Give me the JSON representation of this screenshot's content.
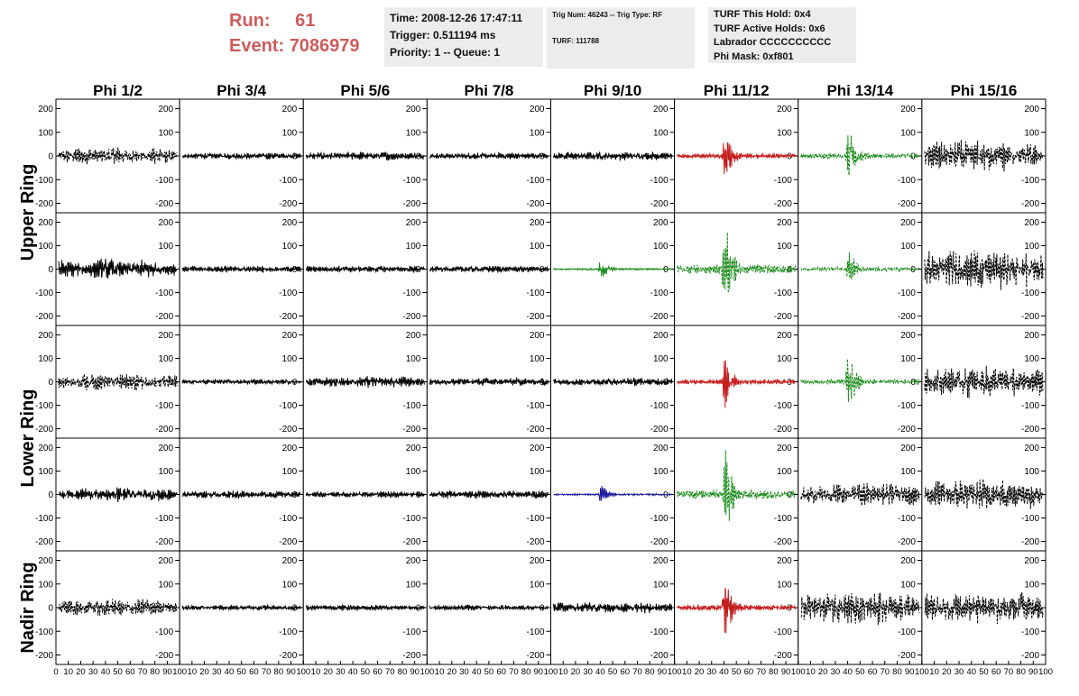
{
  "header": {
    "run_label": "Run:",
    "run_value": "61",
    "event_label": "Event:",
    "event_value": "7086979"
  },
  "info_box_1": {
    "time": "Time: 2008-12-26 17:47:11",
    "trigger": "Trigger: 0.511194 ms",
    "priority": "Priority: 1 -- Queue: 1"
  },
  "info_box_2": {
    "trig": "Trig Num: 46243 -- Trig Type: RF",
    "turf": "TURF: 111788"
  },
  "info_box_3": {
    "hold": "TURF This Hold: 0x4",
    "active": "TURF Active Holds: 0x6",
    "labrador": "Labrador CCCCCCCCCC",
    "phimask": "Phi Mask: 0xf801"
  },
  "chart_data": {
    "type": "line",
    "columns": [
      "Phi 1/2",
      "Phi 3/4",
      "Phi 5/6",
      "Phi 7/8",
      "Phi 9/10",
      "Phi 11/12",
      "Phi 13/14",
      "Phi 15/16"
    ],
    "rows": [
      "Upper Ring",
      "Lower Ring",
      "Nadir Ring"
    ],
    "x_range": [
      0,
      100
    ],
    "x_ticks": [
      "0",
      "10",
      "20",
      "30",
      "40",
      "50",
      "60",
      "70",
      "80",
      "90",
      "100"
    ],
    "y_range": [
      -240,
      240
    ],
    "y_ticks": [
      "200",
      "100",
      "0",
      "-100",
      "-200"
    ],
    "colors": {
      "normal": "#000000",
      "triggered_red": "#c41e1e",
      "triggered_green": "#1a8a1a",
      "triggered_blue": "#1c1c9c"
    },
    "panels": [
      [
        "black-dash",
        "black",
        "black",
        "black",
        "black",
        "red",
        "green-dash",
        "black-dash"
      ],
      [
        "black",
        "black",
        "black",
        "black",
        "green",
        "green-dash",
        "green-dash",
        "black-dash"
      ],
      [
        "black-dash",
        "black",
        "black",
        "black",
        "black",
        "red",
        "green-dash",
        "black-dash"
      ],
      [
        "black",
        "black",
        "black",
        "black",
        "blue",
        "green-dash",
        "black-dash",
        "black-dash"
      ],
      [
        "black-dash",
        "black",
        "black",
        "black",
        "black",
        "red",
        "black-dash",
        "black-dash"
      ]
    ],
    "approx_amplitude": [
      [
        30,
        12,
        15,
        12,
        15,
        100,
        120,
        55
      ],
      [
        35,
        12,
        12,
        12,
        40,
        200,
        80,
        70
      ],
      [
        30,
        10,
        20,
        14,
        14,
        110,
        120,
        55
      ],
      [
        25,
        14,
        12,
        14,
        40,
        200,
        40,
        55
      ],
      [
        30,
        10,
        10,
        10,
        20,
        120,
        60,
        55
      ]
    ],
    "pulse_center_x": 40,
    "grid": false
  }
}
